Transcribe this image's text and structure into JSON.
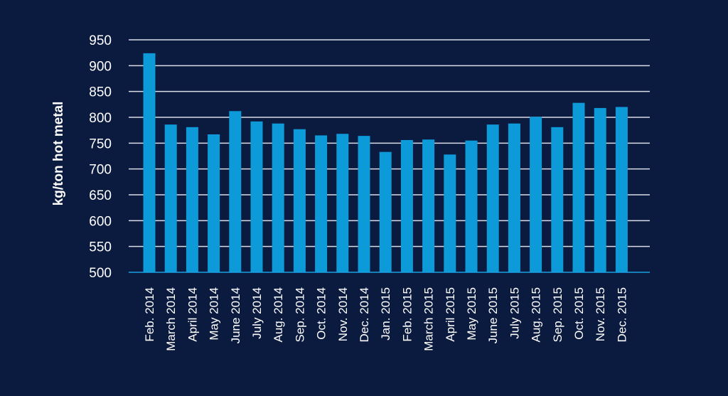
{
  "colors": {
    "background": "#0b1a3f",
    "bar": "#0d9ad9",
    "grid": "#d9dde6",
    "baseline": "#1aa0e0",
    "text": "#ffffff"
  },
  "chart_data": {
    "type": "bar",
    "title": "",
    "xlabel": "",
    "ylabel": "kg/ton hot metal",
    "ylim": [
      500,
      950
    ],
    "yticks": [
      500,
      550,
      600,
      650,
      700,
      750,
      800,
      850,
      900,
      950
    ],
    "grid": true,
    "categories": [
      "Feb. 2014",
      "March 2014",
      "April 2014",
      "May 2014",
      "June 2014",
      "July 2014",
      "Aug. 2014",
      "Sep. 2014",
      "Oct. 2014",
      "Nov. 2014",
      "Dec. 2014",
      "Jan. 2015",
      "Feb. 2015",
      "March 2015",
      "April 2015",
      "May 2015",
      "June 2015",
      "July 2015",
      "Aug. 2015",
      "Sep. 2015",
      "Oct. 2015",
      "Nov. 2015",
      "Dec. 2015"
    ],
    "values": [
      924,
      786,
      781,
      767,
      812,
      792,
      788,
      777,
      765,
      768,
      764,
      733,
      756,
      757,
      728,
      755,
      786,
      788,
      801,
      781,
      828,
      818,
      820
    ]
  }
}
